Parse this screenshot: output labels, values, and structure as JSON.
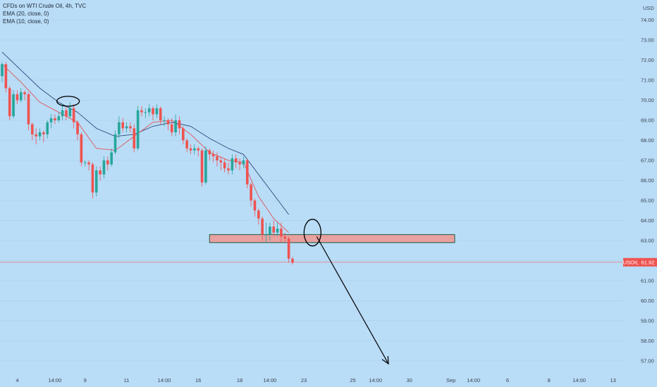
{
  "legend": {
    "title": "CFDs on WTI Crude Oil, 4h, TVC",
    "ema20": "EMA (20, close, 0)",
    "ema10": "EMA (10, close, 0)"
  },
  "currency_label": "USD",
  "price_tag": {
    "symbol": "USOIL",
    "value": "61.92"
  },
  "colors": {
    "background": "#b9dcf7",
    "up_candle": "#26a69a",
    "down_candle": "#ef5350",
    "ema20": "#2c4a78",
    "ema10": "#e05555",
    "zone_fill": "#e8a0a0",
    "zone_stroke": "#1e5a3a",
    "price_line": "#e88a8a",
    "annotation": "#000000"
  },
  "chart_data": {
    "type": "candlestick",
    "y_axis": {
      "min": 56.4,
      "max": 75.0,
      "ticks": [
        57,
        58,
        59,
        60,
        61,
        62,
        63,
        64,
        65,
        66,
        67,
        68,
        69,
        70,
        71,
        72,
        73,
        74
      ],
      "tick_labels": [
        "57.00",
        "58.00",
        "59.00",
        "60.00",
        "61.00",
        "62.00",
        "63.00",
        "64.00",
        "65.00",
        "66.00",
        "67.00",
        "68.00",
        "69.00",
        "70.00",
        "71.00",
        "72.00",
        "73.00",
        "74.00"
      ]
    },
    "x_axis": {
      "ticks": [
        4,
        14,
        22,
        33,
        43,
        52,
        63,
        71,
        80,
        93,
        99,
        108,
        119,
        125,
        134,
        145,
        153,
        162,
        167
      ],
      "tick_labels": [
        "4",
        "14:00",
        "9",
        "11",
        "14:00",
        "16",
        "18",
        "14:00",
        "23",
        "25",
        "14:00",
        "30",
        "Sep",
        "14:00",
        "6",
        "8",
        "14:00",
        "13",
        ""
      ]
    },
    "candles": [
      [
        0,
        71.2,
        71.8,
        71.9,
        70.9
      ],
      [
        1,
        71.8,
        70.6,
        71.9,
        70.4
      ],
      [
        2,
        70.6,
        69.2,
        70.7,
        69.0
      ],
      [
        3,
        69.2,
        70.3,
        70.5,
        69.1
      ],
      [
        4,
        70.3,
        70.0,
        70.5,
        69.8
      ],
      [
        5,
        70.0,
        70.4,
        70.6,
        69.9
      ],
      [
        6,
        70.4,
        70.3,
        70.5,
        70.0
      ],
      [
        7,
        70.3,
        68.8,
        70.4,
        68.5
      ],
      [
        8,
        68.8,
        68.3,
        68.9,
        68.0
      ],
      [
        9,
        68.3,
        68.2,
        68.6,
        67.8
      ],
      [
        10,
        68.2,
        68.4,
        68.6,
        68.0
      ],
      [
        11,
        68.4,
        68.3,
        68.5,
        67.9
      ],
      [
        12,
        68.3,
        68.9,
        69.0,
        68.1
      ],
      [
        13,
        68.9,
        69.1,
        69.3,
        68.6
      ],
      [
        14,
        69.1,
        69.0,
        69.3,
        68.8
      ],
      [
        15,
        69.0,
        69.2,
        69.4,
        68.9
      ],
      [
        16,
        69.2,
        69.5,
        69.8,
        69.0
      ],
      [
        17,
        69.5,
        69.2,
        69.7,
        69.0
      ],
      [
        18,
        69.2,
        69.6,
        69.9,
        69.1
      ],
      [
        19,
        69.6,
        68.9,
        69.8,
        68.6
      ],
      [
        20,
        68.9,
        68.3,
        69.0,
        68.0
      ],
      [
        21,
        68.3,
        66.9,
        68.4,
        66.7
      ],
      [
        22,
        66.9,
        66.9,
        67.0,
        66.7
      ],
      [
        23,
        66.9,
        66.8,
        67.0,
        66.5
      ],
      [
        24,
        66.8,
        65.4,
        66.9,
        65.1
      ],
      [
        25,
        65.4,
        66.5,
        66.7,
        65.2
      ],
      [
        26,
        66.5,
        66.3,
        66.7,
        66.0
      ],
      [
        27,
        66.3,
        67.0,
        67.2,
        66.1
      ],
      [
        28,
        67.0,
        66.8,
        67.2,
        66.5
      ],
      [
        29,
        66.8,
        67.4,
        67.6,
        66.7
      ],
      [
        30,
        67.4,
        68.3,
        68.5,
        67.3
      ],
      [
        31,
        68.3,
        68.9,
        69.2,
        68.1
      ],
      [
        32,
        68.9,
        68.6,
        69.1,
        68.4
      ],
      [
        33,
        68.6,
        68.7,
        68.9,
        68.4
      ],
      [
        34,
        68.7,
        68.6,
        68.9,
        68.4
      ],
      [
        35,
        68.6,
        67.6,
        68.8,
        67.4
      ],
      [
        36,
        67.6,
        69.5,
        69.7,
        67.5
      ],
      [
        37,
        69.5,
        69.4,
        69.7,
        69.2
      ],
      [
        38,
        69.4,
        69.4,
        69.6,
        69.1
      ],
      [
        39,
        69.4,
        69.6,
        69.8,
        69.2
      ],
      [
        40,
        69.6,
        69.3,
        69.7,
        69.0
      ],
      [
        41,
        69.3,
        69.6,
        69.8,
        69.1
      ],
      [
        42,
        69.6,
        69.0,
        69.7,
        68.8
      ],
      [
        43,
        69.0,
        69.0,
        69.2,
        68.7
      ],
      [
        44,
        69.0,
        68.8,
        69.1,
        68.5
      ],
      [
        45,
        68.8,
        68.4,
        69.1,
        68.2
      ],
      [
        46,
        68.4,
        69.0,
        69.3,
        68.2
      ],
      [
        47,
        69.0,
        68.6,
        69.2,
        68.3
      ],
      [
        48,
        68.6,
        68.0,
        68.7,
        67.8
      ],
      [
        49,
        68.0,
        67.6,
        68.1,
        67.4
      ],
      [
        50,
        67.6,
        67.5,
        67.8,
        67.3
      ],
      [
        51,
        67.5,
        67.6,
        67.8,
        67.3
      ],
      [
        52,
        67.6,
        67.5,
        67.7,
        67.2
      ],
      [
        53,
        67.5,
        65.9,
        67.6,
        65.7
      ],
      [
        54,
        65.9,
        67.5,
        67.7,
        65.8
      ],
      [
        55,
        67.5,
        67.3,
        67.6,
        67.0
      ],
      [
        56,
        67.3,
        67.2,
        67.5,
        66.9
      ],
      [
        57,
        67.2,
        67.0,
        67.4,
        66.7
      ],
      [
        58,
        67.0,
        66.9,
        67.2,
        66.5
      ],
      [
        59,
        66.9,
        66.6,
        67.1,
        66.4
      ],
      [
        60,
        66.6,
        66.5,
        66.9,
        66.3
      ],
      [
        61,
        66.5,
        67.1,
        67.3,
        66.3
      ],
      [
        62,
        67.1,
        66.9,
        67.3,
        66.6
      ],
      [
        63,
        66.9,
        66.8,
        67.1,
        66.5
      ],
      [
        64,
        66.8,
        67.0,
        67.2,
        66.6
      ],
      [
        65,
        67.0,
        65.8,
        67.1,
        65.6
      ],
      [
        66,
        65.8,
        65.0,
        65.9,
        64.7
      ],
      [
        67,
        65.0,
        64.5,
        65.1,
        64.2
      ],
      [
        68,
        64.5,
        64.1,
        64.6,
        63.8
      ],
      [
        69,
        64.1,
        63.3,
        64.2,
        63.0
      ],
      [
        70,
        63.3,
        63.3,
        63.9,
        62.9
      ],
      [
        71,
        63.3,
        63.7,
        63.9,
        63.0
      ],
      [
        72,
        63.7,
        63.4,
        64.0,
        63.2
      ],
      [
        73,
        63.4,
        63.6,
        63.9,
        63.2
      ],
      [
        74,
        63.6,
        63.2,
        63.9,
        62.9
      ],
      [
        75,
        63.2,
        63.1,
        63.4,
        62.9
      ],
      [
        76,
        63.1,
        62.1,
        63.2,
        61.9
      ],
      [
        77,
        62.1,
        61.9,
        62.2,
        61.8
      ]
    ],
    "ema20_points": [
      [
        0,
        72.4
      ],
      [
        5,
        71.5
      ],
      [
        10,
        70.6
      ],
      [
        15,
        69.9
      ],
      [
        20,
        69.4
      ],
      [
        25,
        68.6
      ],
      [
        30,
        68.2
      ],
      [
        35,
        68.3
      ],
      [
        40,
        68.7
      ],
      [
        45,
        68.9
      ],
      [
        50,
        68.7
      ],
      [
        55,
        68.1
      ],
      [
        60,
        67.6
      ],
      [
        64,
        67.3
      ],
      [
        68,
        66.3
      ],
      [
        72,
        65.3
      ],
      [
        76,
        64.3
      ]
    ],
    "ema10_points": [
      [
        0,
        71.8
      ],
      [
        5,
        70.9
      ],
      [
        10,
        69.9
      ],
      [
        15,
        69.4
      ],
      [
        20,
        68.9
      ],
      [
        25,
        67.6
      ],
      [
        30,
        67.5
      ],
      [
        35,
        68.2
      ],
      [
        40,
        68.9
      ],
      [
        45,
        69.0
      ],
      [
        50,
        68.3
      ],
      [
        55,
        67.4
      ],
      [
        60,
        67.0
      ],
      [
        64,
        66.9
      ],
      [
        68,
        65.2
      ],
      [
        72,
        64.1
      ],
      [
        76,
        63.4
      ]
    ],
    "zone": {
      "x_start": 55,
      "x_end": 120,
      "y_low": 62.9,
      "y_high": 63.3
    },
    "current_price": 61.92
  }
}
